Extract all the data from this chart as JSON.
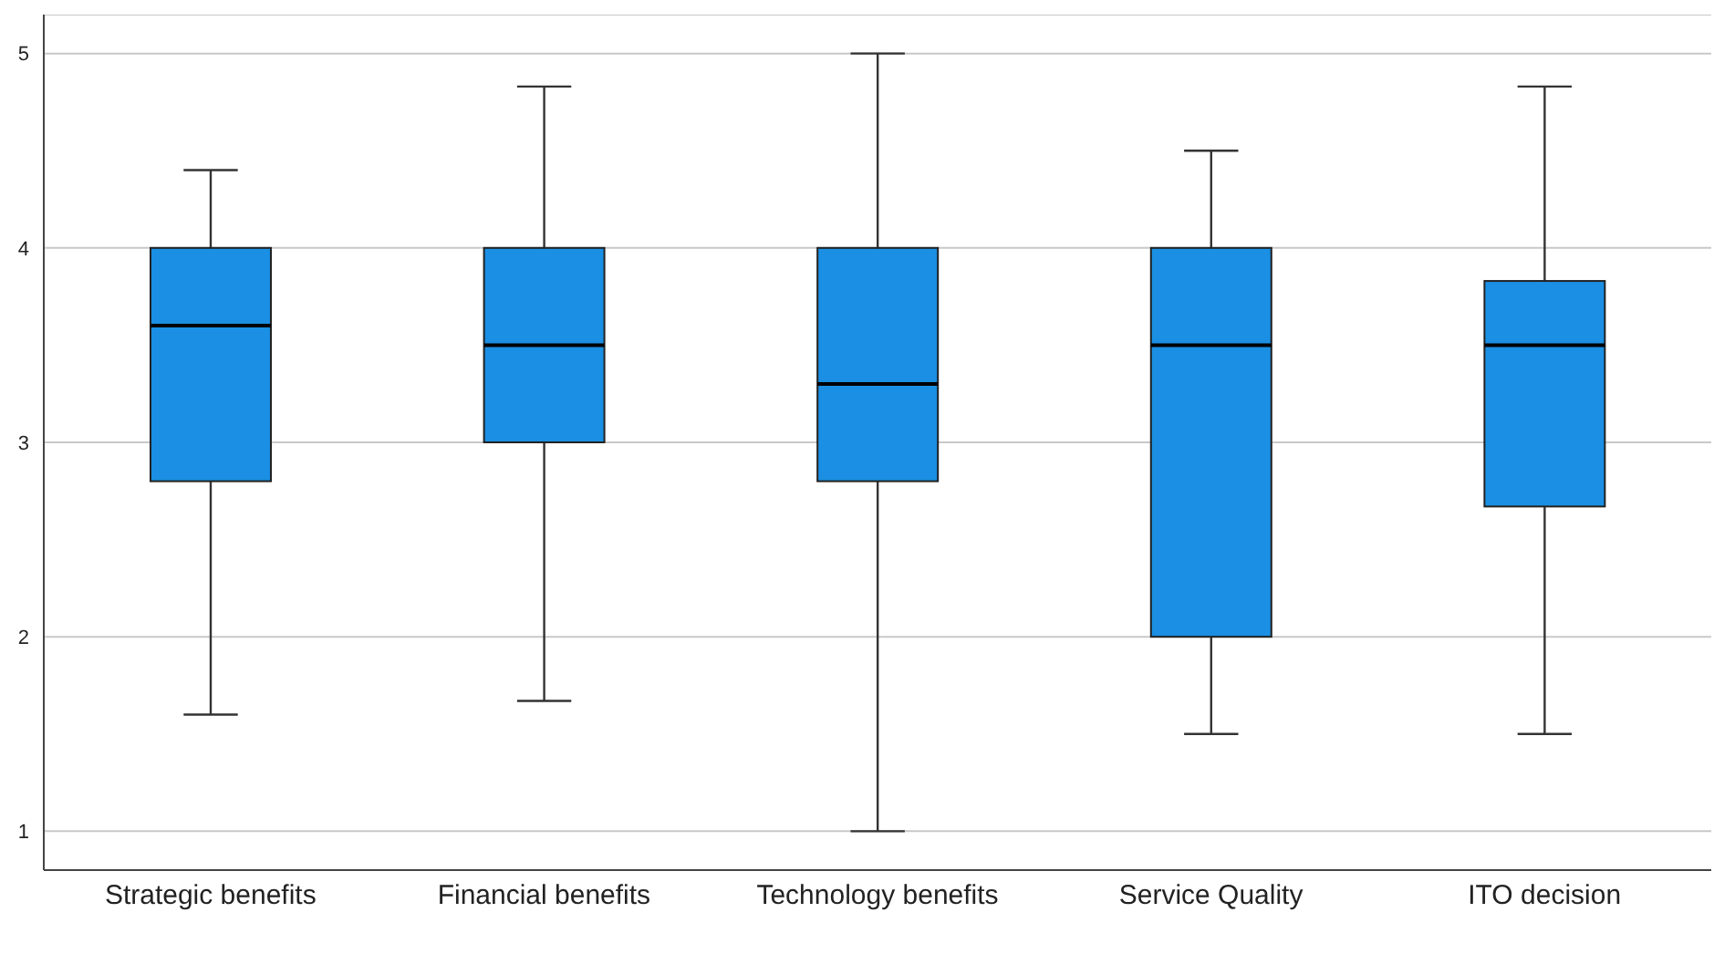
{
  "chart_data": {
    "type": "box",
    "categories": [
      "Strategic benefits",
      "Financial benefits",
      "Technology benefits",
      "Service Quality",
      "ITO decision"
    ],
    "boxes": [
      {
        "low": 1.6,
        "q1": 2.8,
        "median": 3.6,
        "q3": 4,
        "high": 4.4
      },
      {
        "low": 1.67,
        "q1": 3,
        "median": 3.5,
        "q3": 4,
        "high": 4.83
      },
      {
        "low": 1,
        "q1": 2.8,
        "median": 3.3,
        "q3": 4,
        "high": 5
      },
      {
        "low": 1.5,
        "q1": 2,
        "median": 3.5,
        "q3": 4,
        "high": 4.5
      },
      {
        "low": 1.5,
        "q1": 2.67,
        "median": 3.5,
        "q3": 3.83,
        "high": 4.83
      }
    ],
    "color": "#1a8fe3",
    "ylim": [
      0.8,
      5.2
    ],
    "yticks": [
      1,
      2,
      3,
      4,
      5
    ],
    "grid": "y"
  }
}
